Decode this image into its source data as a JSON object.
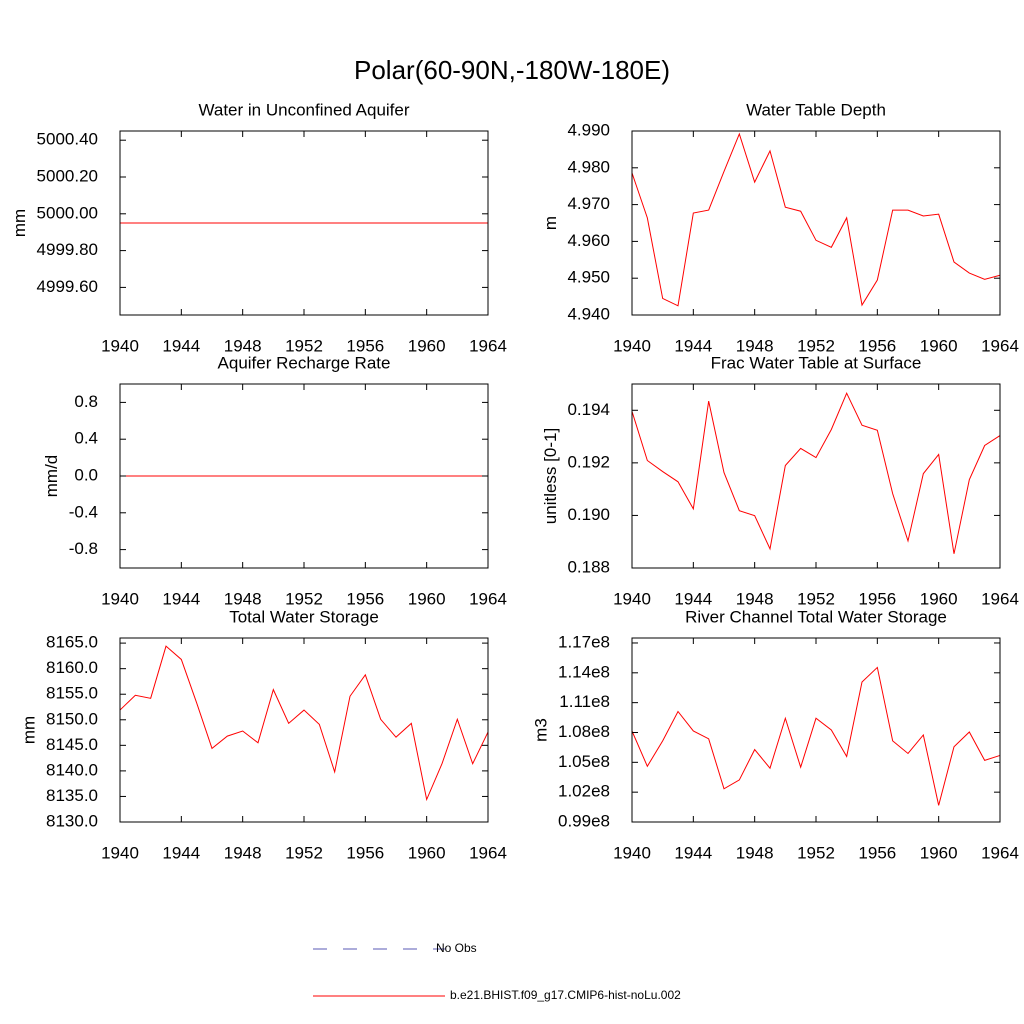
{
  "title": "Polar(60-90N,-180W-180E)",
  "legend": [
    {
      "name": "No Obs",
      "color": "#5a5ab4",
      "dashed": true
    },
    {
      "name": "b.e21.BHIST.f09_g17.CMIP6-hist-noLu.002",
      "color": "#ff0000",
      "dashed": false
    }
  ],
  "chart_data": [
    {
      "type": "line",
      "title": "Water in Unconfined Aquifer",
      "y_label": "mm",
      "color": "#ff0000",
      "x": [
        1940,
        1941,
        1942,
        1943,
        1944,
        1945,
        1946,
        1947,
        1948,
        1949,
        1950,
        1951,
        1952,
        1953,
        1954,
        1955,
        1956,
        1957,
        1958,
        1959,
        1960,
        1961,
        1962,
        1963,
        1964
      ],
      "values": [
        4999.95,
        4999.95,
        4999.95,
        4999.95,
        4999.95,
        4999.95,
        4999.95,
        4999.95,
        4999.95,
        4999.95,
        4999.95,
        4999.95,
        4999.95,
        4999.95,
        4999.95,
        4999.95,
        4999.95,
        4999.95,
        4999.95,
        4999.95,
        4999.95,
        4999.95,
        4999.95,
        4999.95,
        4999.95
      ],
      "xlim": [
        1940,
        1964
      ],
      "xticks": [
        1940,
        1944,
        1948,
        1952,
        1956,
        1960,
        1964
      ],
      "ylim": [
        4999.45,
        5000.45
      ],
      "yticks": [
        {
          "value": 4999.6,
          "label": "4999.60"
        },
        {
          "value": 4999.8,
          "label": "4999.80"
        },
        {
          "value": 5000,
          "label": "5000.00"
        },
        {
          "value": 5000.2,
          "label": "5000.20"
        },
        {
          "value": 5000.4,
          "label": "5000.40"
        }
      ]
    },
    {
      "type": "line",
      "title": "Water Table Depth",
      "y_label": "m",
      "color": "#ff0000",
      "x": [
        1940,
        1941,
        1942,
        1943,
        1944,
        1945,
        1946,
        1947,
        1948,
        1949,
        1950,
        1951,
        1952,
        1953,
        1954,
        1955,
        1956,
        1957,
        1958,
        1959,
        1960,
        1961,
        1962,
        1963,
        1964
      ],
      "values": [
        4.9786,
        4.9664,
        4.9445,
        4.9425,
        4.9677,
        4.9685,
        4.979,
        4.9892,
        4.9761,
        4.9846,
        4.9693,
        4.9682,
        4.9603,
        4.9584,
        4.9664,
        4.9427,
        4.9495,
        4.9685,
        4.9685,
        4.9669,
        4.9674,
        4.9544,
        4.9514,
        4.9497,
        4.9508
      ],
      "xlim": [
        1940,
        1964
      ],
      "xticks": [
        1940,
        1944,
        1948,
        1952,
        1956,
        1960,
        1964
      ],
      "ylim": [
        4.94,
        4.99
      ],
      "yticks": [
        {
          "value": 4.94,
          "label": "4.940"
        },
        {
          "value": 4.95,
          "label": "4.950"
        },
        {
          "value": 4.96,
          "label": "4.960"
        },
        {
          "value": 4.97,
          "label": "4.970"
        },
        {
          "value": 4.98,
          "label": "4.980"
        },
        {
          "value": 4.99,
          "label": "4.990"
        }
      ]
    },
    {
      "type": "line",
      "title": "Aquifer Recharge Rate",
      "y_label": "mm/d",
      "color": "#ff0000",
      "x": [
        1940,
        1941,
        1942,
        1943,
        1944,
        1945,
        1946,
        1947,
        1948,
        1949,
        1950,
        1951,
        1952,
        1953,
        1954,
        1955,
        1956,
        1957,
        1958,
        1959,
        1960,
        1961,
        1962,
        1963,
        1964
      ],
      "values": [
        0,
        0,
        0,
        0,
        0,
        0,
        0,
        0,
        0,
        0,
        0,
        0,
        0,
        0,
        0,
        0,
        0,
        0,
        0,
        0,
        0,
        0,
        0,
        0,
        0
      ],
      "xlim": [
        1940,
        1964
      ],
      "xticks": [
        1940,
        1944,
        1948,
        1952,
        1956,
        1960,
        1964
      ],
      "ylim": [
        -1,
        1
      ],
      "yticks": [
        -0.8,
        -0.4,
        {
          "value": 0,
          "label": "0.0"
        },
        0.4,
        0.8
      ]
    },
    {
      "type": "line",
      "title": "Frac Water Table at Surface",
      "y_label": "unitless [0-1]",
      "color": "#ff0000",
      "x": [
        1940,
        1941,
        1942,
        1943,
        1944,
        1945,
        1946,
        1947,
        1948,
        1949,
        1950,
        1951,
        1952,
        1953,
        1954,
        1955,
        1956,
        1957,
        1958,
        1959,
        1960,
        1961,
        1962,
        1963,
        1964
      ],
      "values": [
        0.19396,
        0.19209,
        0.19167,
        0.19128,
        0.19025,
        0.19435,
        0.19163,
        0.19018,
        0.18999,
        0.18873,
        0.1919,
        0.19255,
        0.1922,
        0.19327,
        0.19465,
        0.19343,
        0.19324,
        0.19083,
        0.18903,
        0.19159,
        0.19232,
        0.18854,
        0.19136,
        0.19266,
        0.19304
      ],
      "xlim": [
        1940,
        1964
      ],
      "xticks": [
        1940,
        1944,
        1948,
        1952,
        1956,
        1960,
        1964
      ],
      "ylim": [
        0.188,
        0.195
      ],
      "yticks": [
        0.188,
        {
          "value": 0.19,
          "label": "0.190"
        },
        0.192,
        0.194
      ]
    },
    {
      "type": "line",
      "title": "Total Water Storage",
      "y_label": "mm",
      "color": "#ff0000",
      "x": [
        1940,
        1941,
        1942,
        1943,
        1944,
        1945,
        1946,
        1947,
        1948,
        1949,
        1950,
        1951,
        1952,
        1953,
        1954,
        1955,
        1956,
        1957,
        1958,
        1959,
        1960,
        1961,
        1962,
        1963,
        1964
      ],
      "values": [
        8151.9,
        8154.8,
        8154.2,
        8164.4,
        8161.8,
        8153.3,
        8144.4,
        8146.8,
        8147.8,
        8145.5,
        8155.9,
        8149.3,
        8151.9,
        8149.1,
        8139.8,
        8154.6,
        8158.8,
        8150.1,
        8146.6,
        8149.3,
        8134.4,
        8141.4,
        8150.1,
        8141.4,
        8147.6
      ],
      "xlim": [
        1940,
        1964
      ],
      "xticks": [
        1940,
        1944,
        1948,
        1952,
        1956,
        1960,
        1964
      ],
      "ylim": [
        8130,
        8166
      ],
      "yticks": [
        {
          "value": 8130,
          "label": "8130.0"
        },
        {
          "value": 8135,
          "label": "8135.0"
        },
        {
          "value": 8140,
          "label": "8140.0"
        },
        {
          "value": 8145,
          "label": "8145.0"
        },
        {
          "value": 8150,
          "label": "8150.0"
        },
        {
          "value": 8155,
          "label": "8155.0"
        },
        {
          "value": 8160,
          "label": "8160.0"
        },
        {
          "value": 8165,
          "label": "8165.0"
        }
      ]
    },
    {
      "type": "line",
      "title": "River Channel Total Water Storage",
      "y_label": "m3",
      "color": "#ff0000",
      "x": [
        1940,
        1941,
        1942,
        1943,
        1944,
        1945,
        1946,
        1947,
        1948,
        1949,
        1950,
        1951,
        1952,
        1953,
        1954,
        1955,
        1956,
        1957,
        1958,
        1959,
        1960,
        1961,
        1962,
        1963,
        1964
      ],
      "values": [
        108150000,
        104600000,
        107160000,
        110110000,
        108150000,
        107360000,
        102340000,
        103230000,
        106280000,
        104410000,
        109430000,
        104510000,
        109430000,
        108250000,
        105590000,
        113070000,
        114540000,
        107160000,
        105890000,
        107750000,
        100670000,
        106570000,
        108050000,
        105200000,
        105690000
      ],
      "xlim": [
        1940,
        1964
      ],
      "xticks": [
        1940,
        1944,
        1948,
        1952,
        1956,
        1960,
        1964
      ],
      "ylim": [
        99000000,
        117500000
      ],
      "yticks": [
        {
          "value": 99000000,
          "label": "0.99e8"
        },
        {
          "value": 102000000,
          "label": "1.02e8"
        },
        {
          "value": 105000000,
          "label": "1.05e8"
        },
        {
          "value": 108000000,
          "label": "1.08e8"
        },
        {
          "value": 111000000,
          "label": "1.11e8"
        },
        {
          "value": 114000000,
          "label": "1.14e8"
        },
        {
          "value": 117000000,
          "label": "1.17e8"
        }
      ]
    }
  ]
}
